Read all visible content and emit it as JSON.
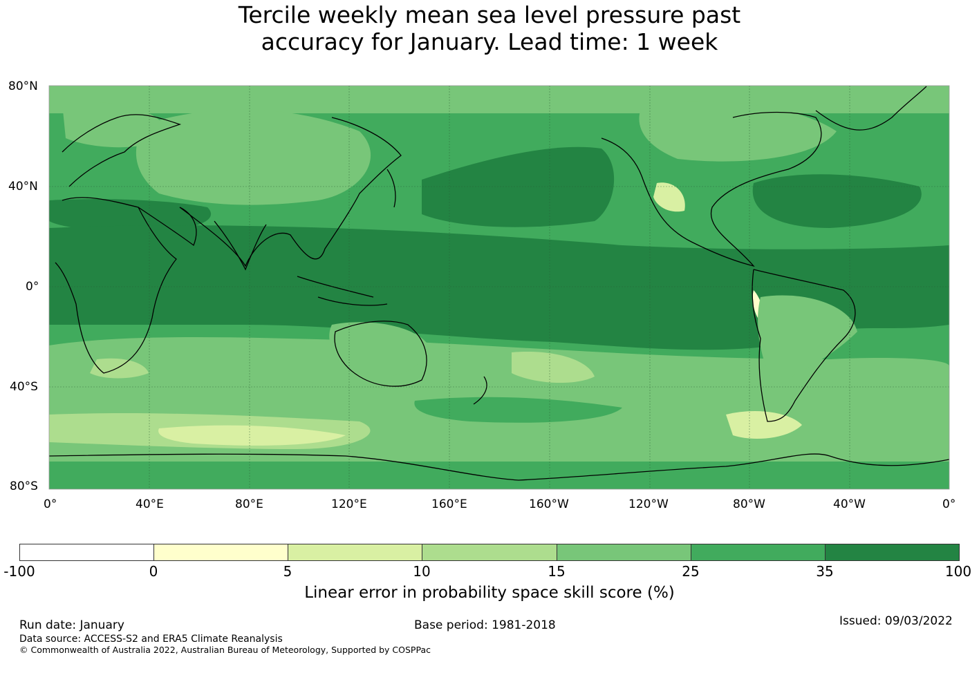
{
  "title_lines": [
    "Tercile weekly mean sea level pressure past",
    "accuracy for January. Lead time: 1 week"
  ],
  "map": {
    "lat_labels": [
      "80°N",
      "40°N",
      "0°",
      "40°S",
      "80°S"
    ],
    "lon_labels": [
      "0°",
      "40°E",
      "80°E",
      "120°E",
      "160°E",
      "160°W",
      "120°W",
      "80°W",
      "40°W",
      "0°"
    ],
    "gridlines": true,
    "coastlines": true
  },
  "colorbar": {
    "ticks": [
      "-100",
      "0",
      "5",
      "10",
      "15",
      "25",
      "35",
      "100"
    ],
    "colors": [
      "#ffffff",
      "#ffffcc",
      "#d9f0a3",
      "#addd8e",
      "#78c679",
      "#41ab5d",
      "#238443"
    ],
    "label": "Linear error in probability space skill score (%)"
  },
  "footer": {
    "run_date": "Run date: January",
    "base_period": "Base period: 1981-2018",
    "issued": "Issued: 09/03/2022",
    "data_source": "Data source: ACCESS-S2 and ERA5 Climate Reanalysis",
    "copyright": "© Commonwealth of Australia 2022, Australian Bureau of Meteorology, Supported by COSPPac"
  }
}
